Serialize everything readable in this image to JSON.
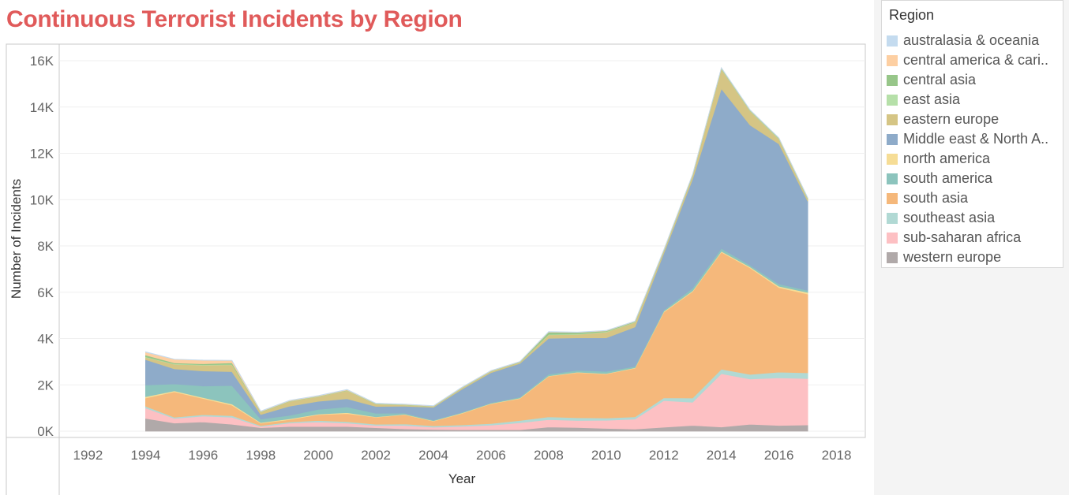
{
  "chart_data": {
    "type": "area",
    "stacked": true,
    "title": "Continuous Terrorist Incidents by Region",
    "xlabel": "Year",
    "ylabel": "Number of Incidents",
    "xlim": [
      1991,
      2019
    ],
    "ylim": [
      0,
      16000
    ],
    "x_ticks": [
      1992,
      1994,
      1996,
      1998,
      2000,
      2002,
      2004,
      2006,
      2008,
      2010,
      2012,
      2014,
      2016,
      2018
    ],
    "y_ticks": [
      {
        "value": 0,
        "label": "0K"
      },
      {
        "value": 2000,
        "label": "2K"
      },
      {
        "value": 4000,
        "label": "4K"
      },
      {
        "value": 6000,
        "label": "6K"
      },
      {
        "value": 8000,
        "label": "8K"
      },
      {
        "value": 10000,
        "label": "10K"
      },
      {
        "value": 12000,
        "label": "12K"
      },
      {
        "value": 14000,
        "label": "14K"
      },
      {
        "value": 16000,
        "label": "16K"
      }
    ],
    "grid": true,
    "legend_title": "Region",
    "legend_position": "right",
    "x": [
      1994,
      1995,
      1996,
      1997,
      1998,
      1999,
      2000,
      2001,
      2002,
      2003,
      2004,
      2005,
      2006,
      2007,
      2008,
      2009,
      2010,
      2011,
      2012,
      2013,
      2014,
      2015,
      2016,
      2017
    ],
    "series": [
      {
        "name": "western europe",
        "color": "#b0a9a9",
        "values": [
          550,
          350,
          400,
          300,
          150,
          200,
          200,
          200,
          150,
          100,
          70,
          60,
          60,
          60,
          180,
          160,
          120,
          90,
          170,
          250,
          180,
          300,
          250,
          270
        ]
      },
      {
        "name": "sub-saharan africa",
        "color": "#fdc0c3",
        "values": [
          450,
          200,
          250,
          300,
          50,
          150,
          200,
          150,
          100,
          150,
          100,
          150,
          200,
          300,
          320,
          300,
          350,
          430,
          1150,
          1000,
          2300,
          1950,
          2050,
          2000
        ]
      },
      {
        "name": "southeast asia",
        "color": "#b1d9d4",
        "values": [
          80,
          50,
          60,
          70,
          40,
          50,
          60,
          60,
          50,
          60,
          60,
          60,
          70,
          100,
          120,
          120,
          100,
          100,
          120,
          180,
          200,
          200,
          250,
          250
        ]
      },
      {
        "name": "south asia",
        "color": "#f5b87b",
        "values": [
          350,
          1100,
          700,
          450,
          100,
          100,
          250,
          350,
          300,
          400,
          200,
          500,
          850,
          950,
          1750,
          1950,
          1900,
          2100,
          3700,
          4600,
          5050,
          4600,
          3650,
          3400
        ]
      },
      {
        "name": "north america",
        "color": "#f6dd96",
        "values": [
          60,
          40,
          40,
          50,
          30,
          30,
          30,
          40,
          20,
          20,
          20,
          20,
          20,
          20,
          20,
          20,
          20,
          20,
          30,
          30,
          40,
          40,
          60,
          70
        ]
      },
      {
        "name": "south america",
        "color": "#8cc4bd",
        "values": [
          500,
          300,
          500,
          800,
          150,
          150,
          200,
          250,
          150,
          50,
          30,
          30,
          30,
          40,
          70,
          80,
          90,
          60,
          60,
          120,
          120,
          80,
          100,
          90
        ]
      },
      {
        "name": "Middle east & North Africa",
        "color": "#8eabc9",
        "values": [
          1100,
          650,
          650,
          600,
          200,
          400,
          350,
          350,
          300,
          300,
          550,
          1000,
          1300,
          1450,
          1550,
          1400,
          1450,
          1700,
          2450,
          4700,
          6900,
          6050,
          6050,
          3850
        ]
      },
      {
        "name": "eastern europe",
        "color": "#d5c585",
        "values": [
          100,
          200,
          250,
          300,
          100,
          200,
          200,
          350,
          100,
          50,
          30,
          50,
          50,
          50,
          150,
          150,
          250,
          200,
          100,
          150,
          850,
          600,
          200,
          100
        ]
      },
      {
        "name": "east asia",
        "color": "#b6e0a9",
        "values": [
          20,
          20,
          20,
          20,
          10,
          10,
          10,
          10,
          10,
          10,
          10,
          10,
          10,
          10,
          20,
          20,
          20,
          20,
          20,
          20,
          20,
          20,
          20,
          20
        ]
      },
      {
        "name": "central asia",
        "color": "#97c689",
        "values": [
          80,
          40,
          40,
          60,
          10,
          10,
          10,
          10,
          10,
          10,
          10,
          10,
          10,
          10,
          100,
          60,
          30,
          20,
          20,
          20,
          20,
          20,
          20,
          20
        ]
      },
      {
        "name": "central america & caribbean",
        "color": "#fdcfa2",
        "values": [
          120,
          150,
          150,
          100,
          20,
          20,
          20,
          20,
          10,
          10,
          10,
          10,
          10,
          10,
          10,
          10,
          10,
          10,
          10,
          10,
          10,
          10,
          10,
          10
        ]
      },
      {
        "name": "australasia & oceania",
        "color": "#c4dbef",
        "values": [
          20,
          10,
          10,
          10,
          10,
          10,
          10,
          10,
          10,
          10,
          10,
          10,
          10,
          10,
          10,
          10,
          10,
          10,
          10,
          10,
          10,
          10,
          10,
          10
        ]
      }
    ],
    "legend_order": [
      {
        "label": "australasia & oceania",
        "color": "#c4dbef"
      },
      {
        "label": "central america & cari..",
        "color": "#fdcfa2"
      },
      {
        "label": "central asia",
        "color": "#97c689"
      },
      {
        "label": "east asia",
        "color": "#b6e0a9"
      },
      {
        "label": "eastern europe",
        "color": "#d5c585"
      },
      {
        "label": "Middle east & North A..",
        "color": "#8eabc9"
      },
      {
        "label": "north america",
        "color": "#f6dd96"
      },
      {
        "label": "south america",
        "color": "#8cc4bd"
      },
      {
        "label": "south asia",
        "color": "#f5b87b"
      },
      {
        "label": "southeast asia",
        "color": "#b1d9d4"
      },
      {
        "label": "sub-saharan africa",
        "color": "#fdc0c3"
      },
      {
        "label": "western europe",
        "color": "#b0a9a9"
      }
    ]
  }
}
